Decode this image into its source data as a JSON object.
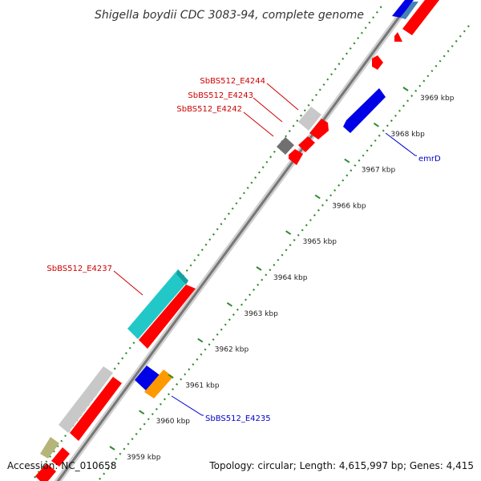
{
  "title": "Shigella boydii CDC 3083-94, complete genome",
  "accession": "Accession: NC_010658",
  "summary": "Topology: circular; Length: 4,615,997 bp; Genes: 4,415",
  "colors": {
    "forward": "#ff0000",
    "reverse": "#0000e6",
    "label_red": "#cc0000",
    "label_blue": "#0000cc",
    "cyan": "#22c8c8",
    "orange": "#ff9900",
    "gray": "#c8c8c8",
    "darkgray": "#707070",
    "olive": "#b5b57a",
    "steel": "#4682b4",
    "tick": "#2e8b2e"
  },
  "ticks": [
    "3959 kbp",
    "3960 kbp",
    "3961 kbp",
    "3962 kbp",
    "3963 kbp",
    "3964 kbp",
    "3965 kbp",
    "3966 kbp",
    "3967 kbp",
    "3968 kbp",
    "3969 kbp"
  ],
  "labels": {
    "e4244": "SbBS512_E4244",
    "e4243": "SbBS512_E4243",
    "e4242": "SbBS512_E4242",
    "e4237": "SbBS512_E4237",
    "e4235": "SbBS512_E4235",
    "emrD": "emrD"
  }
}
